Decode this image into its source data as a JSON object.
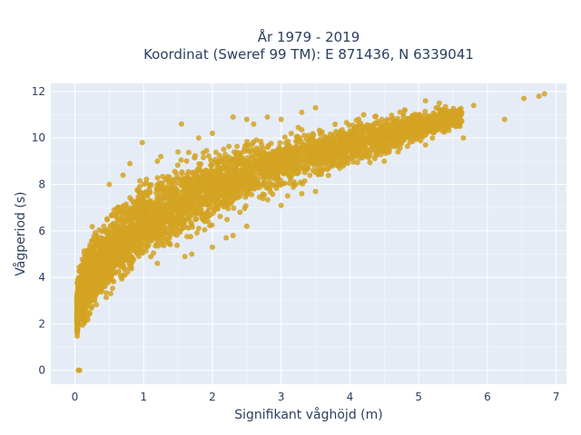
{
  "chart_data": {
    "type": "scatter",
    "title_lines": [
      "År 1979 - 2019",
      "Koordinat (Sweref 99 TM): E 871436, N 6339041"
    ],
    "xlabel": "Signifikant våghöjd (m)",
    "ylabel": "Vågperiod (s)",
    "xlim": [
      -0.35,
      7.15
    ],
    "ylim": [
      -0.6,
      12.35
    ],
    "xticks": [
      0,
      1,
      2,
      3,
      4,
      5,
      6,
      7
    ],
    "yticks": [
      0,
      2,
      4,
      6,
      8,
      10,
      12
    ],
    "grid": true,
    "legend": "none",
    "colors": {
      "marker": "#d4a322",
      "plot_background": "#e5ecf6",
      "grid": "#ffffff",
      "text": "#2a3f5f"
    },
    "series": [
      {
        "envelope": {
          "hs": [
            0.02,
            0.05,
            0.1,
            0.2,
            0.3,
            0.5,
            0.7,
            1.0,
            1.3,
            1.5,
            1.8,
            2.0,
            2.3,
            2.5,
            3.0,
            3.5,
            4.0,
            4.5,
            5.0,
            5.5,
            5.8
          ],
          "t_min": [
            1.3,
            1.2,
            1.4,
            1.8,
            2.2,
            2.8,
            3.4,
            4.2,
            4.7,
            5.0,
            5.6,
            6.0,
            6.5,
            6.8,
            7.3,
            7.9,
            8.5,
            9.0,
            9.6,
            10.2,
            10.4
          ],
          "t_max": [
            3.5,
            4.5,
            5.2,
            6.0,
            6.5,
            7.2,
            7.8,
            8.6,
            9.0,
            9.3,
            9.6,
            9.8,
            10.0,
            10.2,
            10.5,
            10.8,
            11.0,
            11.2,
            11.4,
            11.5,
            11.5
          ]
        },
        "points": [
          [
            0.05,
            0.0
          ],
          [
            0.07,
            0.0
          ],
          [
            0.5,
            8.0
          ],
          [
            0.7,
            8.4
          ],
          [
            0.8,
            8.9
          ],
          [
            0.98,
            9.8
          ],
          [
            1.2,
            9.0
          ],
          [
            1.25,
            9.2
          ],
          [
            1.5,
            9.4
          ],
          [
            1.55,
            10.6
          ],
          [
            1.8,
            10.0
          ],
          [
            2.0,
            10.2
          ],
          [
            2.3,
            10.9
          ],
          [
            2.5,
            10.8
          ],
          [
            2.6,
            10.6
          ],
          [
            2.8,
            10.9
          ],
          [
            3.0,
            10.8
          ],
          [
            3.3,
            11.1
          ],
          [
            3.5,
            11.3
          ],
          [
            4.2,
            11.0
          ],
          [
            4.6,
            10.8
          ],
          [
            4.8,
            11.2
          ],
          [
            5.1,
            11.6
          ],
          [
            5.2,
            10.5
          ],
          [
            5.3,
            11.5
          ],
          [
            5.5,
            11.0
          ],
          [
            5.6,
            10.5
          ],
          [
            5.65,
            10.0
          ],
          [
            5.8,
            11.4
          ],
          [
            6.25,
            10.8
          ],
          [
            6.53,
            11.7
          ],
          [
            6.75,
            11.8
          ],
          [
            6.83,
            11.9
          ],
          [
            1.2,
            4.6
          ],
          [
            1.6,
            4.9
          ],
          [
            2.0,
            5.3
          ],
          [
            2.3,
            5.8
          ],
          [
            2.5,
            6.2
          ],
          [
            3.0,
            7.1
          ],
          [
            3.5,
            7.7
          ],
          [
            4.5,
            9.0
          ],
          [
            4.7,
            9.4
          ],
          [
            5.2,
            10.0
          ],
          [
            5.1,
            9.7
          ],
          [
            1.7,
            5.0
          ],
          [
            2.2,
            5.7
          ],
          [
            0.3,
            3.2
          ],
          [
            0.4,
            3.6
          ],
          [
            2.4,
            6.8
          ],
          [
            3.3,
            7.6
          ]
        ]
      }
    ]
  }
}
